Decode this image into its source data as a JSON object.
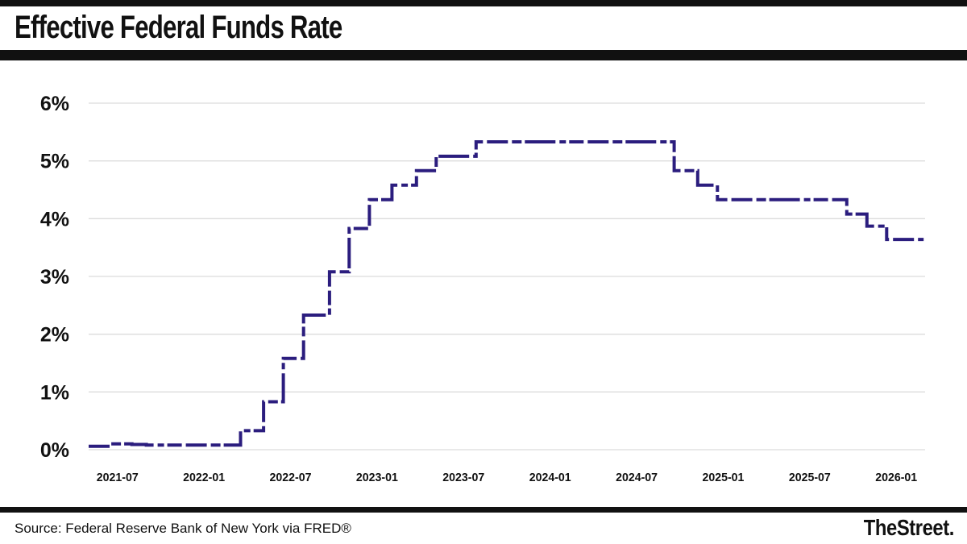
{
  "header": {
    "title": "Effective Federal Funds Rate"
  },
  "footer": {
    "source": "Source: Federal Reserve Bank of New York via FRED®",
    "brand": "TheStreet."
  },
  "colors": {
    "line": "#2b1d7e",
    "grid": "#dcdcdc",
    "text": "#111111",
    "bars": "#111111",
    "background": "#ffffff"
  },
  "chart_data": {
    "type": "line",
    "title": "Effective Federal Funds Rate",
    "xlabel": "",
    "ylabel": "",
    "legend": "none",
    "grid": true,
    "line_style": "step-after, irregular dashed",
    "x_range": [
      "2021-05-01",
      "2026-03-01"
    ],
    "ylim": [
      0,
      6
    ],
    "y_ticks": [
      {
        "label": "0%",
        "value": 0
      },
      {
        "label": "1%",
        "value": 1
      },
      {
        "label": "2%",
        "value": 2
      },
      {
        "label": "3%",
        "value": 3
      },
      {
        "label": "4%",
        "value": 4
      },
      {
        "label": "5%",
        "value": 5
      },
      {
        "label": "6%",
        "value": 6
      }
    ],
    "x_ticks": [
      "2021-07",
      "2022-01",
      "2022-07",
      "2023-01",
      "2023-07",
      "2024-01",
      "2024-07",
      "2025-01",
      "2025-07",
      "2026-01"
    ],
    "series": [
      {
        "name": "Effective Federal Funds Rate (%)",
        "points": [
          [
            "2021-05-01",
            0.06
          ],
          [
            "2021-06-17",
            0.1
          ],
          [
            "2021-08-01",
            0.09
          ],
          [
            "2021-09-01",
            0.08
          ],
          [
            "2021-12-01",
            0.08
          ],
          [
            "2022-03-17",
            0.33
          ],
          [
            "2022-05-05",
            0.83
          ],
          [
            "2022-06-16",
            1.58
          ],
          [
            "2022-07-28",
            2.33
          ],
          [
            "2022-09-22",
            3.08
          ],
          [
            "2022-11-03",
            3.83
          ],
          [
            "2022-12-15",
            4.33
          ],
          [
            "2023-02-02",
            4.58
          ],
          [
            "2023-03-23",
            4.83
          ],
          [
            "2023-05-04",
            5.08
          ],
          [
            "2023-07-27",
            5.33
          ],
          [
            "2024-09-19",
            4.83
          ],
          [
            "2024-11-08",
            4.58
          ],
          [
            "2024-12-19",
            4.33
          ],
          [
            "2025-09-18",
            4.08
          ],
          [
            "2025-10-30",
            3.87
          ],
          [
            "2025-12-11",
            3.64
          ],
          [
            "2026-02-28",
            3.64
          ]
        ]
      }
    ]
  }
}
